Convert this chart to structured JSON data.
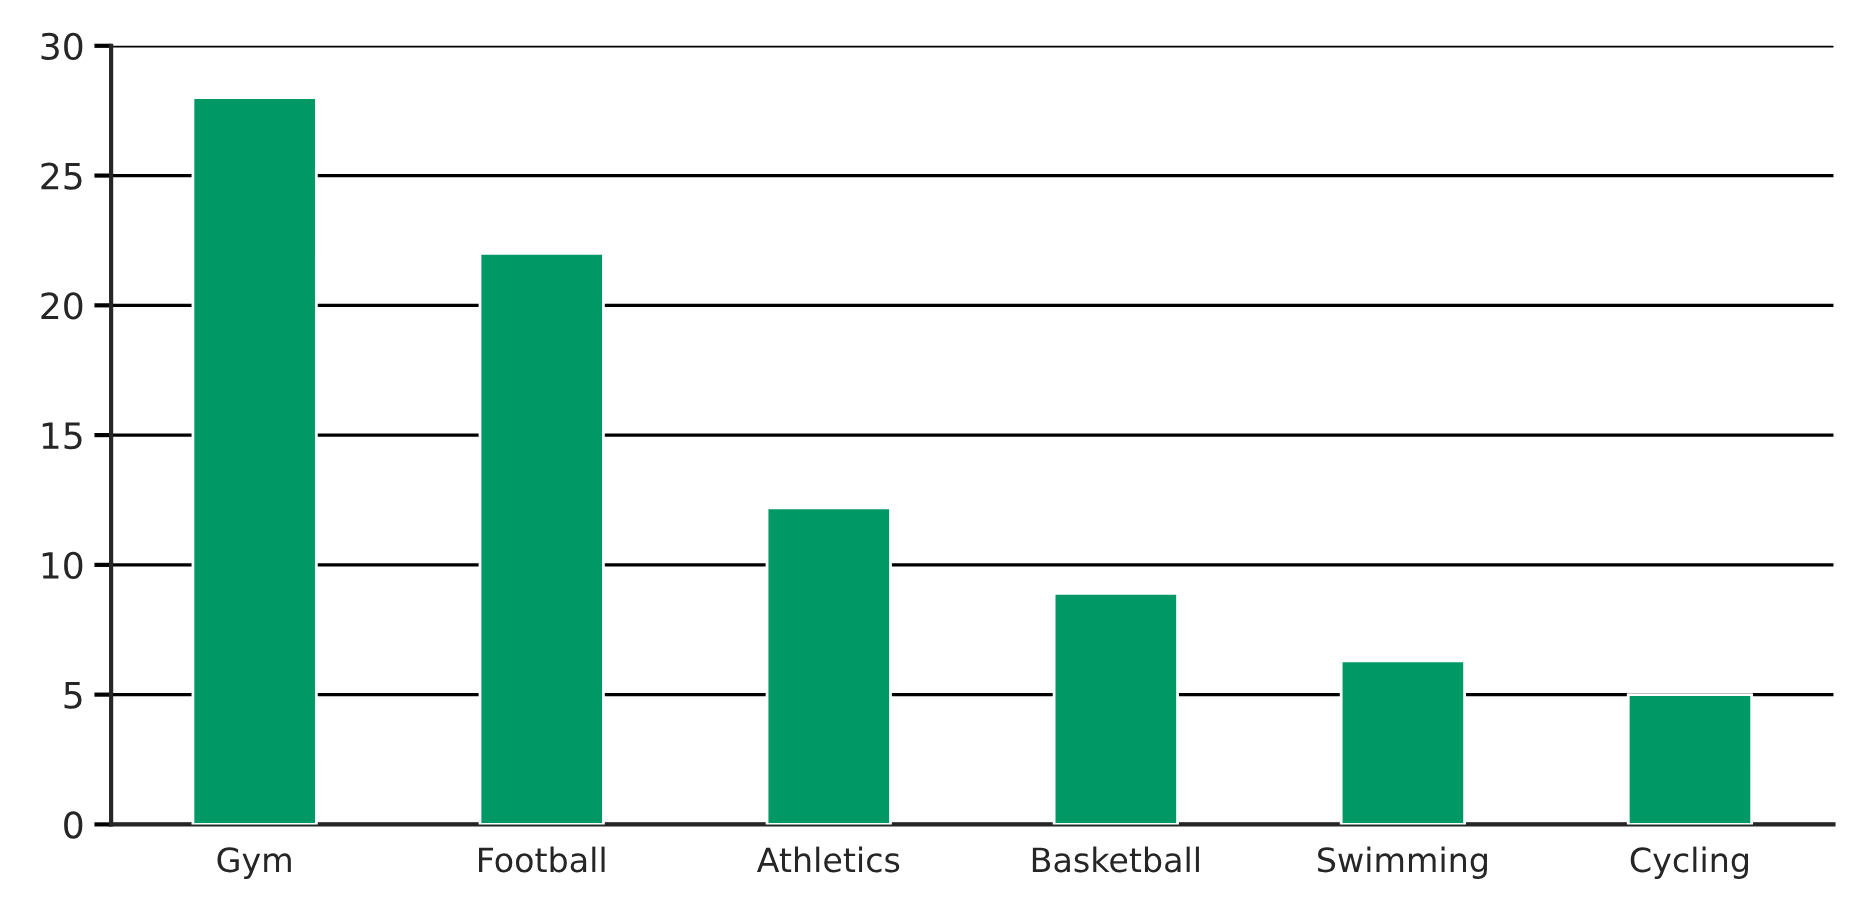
{
  "chart_data": {
    "type": "bar",
    "categories": [
      "Gym",
      "Football",
      "Athletics",
      "Basketball",
      "Swimming",
      "Cycling"
    ],
    "values": [
      28,
      22,
      12.2,
      8.9,
      6.3,
      5.0
    ],
    "color": "#009966",
    "ylim": [
      0,
      30
    ],
    "yticks": [
      0,
      5,
      10,
      15,
      20,
      25,
      30
    ],
    "grid": "y"
  }
}
